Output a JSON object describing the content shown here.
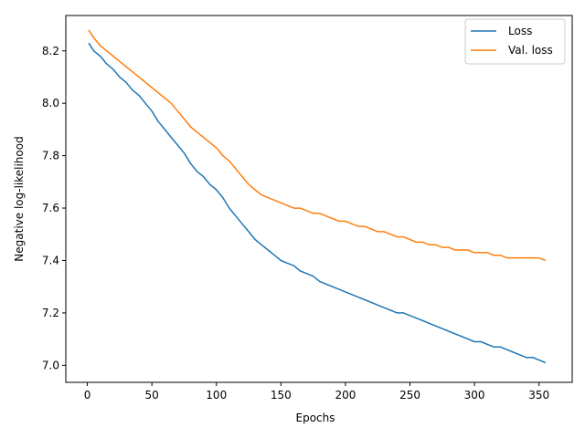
{
  "chart_data": {
    "type": "line",
    "xlabel": "Epochs",
    "ylabel": "Negative log-likelihood",
    "xlim": [
      -16.7,
      375.7
    ],
    "ylim": [
      6.935,
      8.335
    ],
    "xticks": [
      0,
      50,
      100,
      150,
      200,
      250,
      300,
      350
    ],
    "yticks": [
      7.0,
      7.2,
      7.4,
      7.6,
      7.8,
      8.0,
      8.2
    ],
    "yticklabels": [
      "7.0",
      "7.2",
      "7.4",
      "7.6",
      "7.8",
      "8.0",
      "8.2"
    ],
    "grid": false,
    "legend_position": "top-right",
    "series": [
      {
        "name": "Loss",
        "color": "#1f77b4",
        "x": [
          1,
          5,
          10,
          15,
          20,
          25,
          30,
          35,
          40,
          45,
          50,
          55,
          60,
          65,
          70,
          75,
          80,
          85,
          90,
          95,
          100,
          105,
          110,
          115,
          120,
          125,
          130,
          135,
          140,
          145,
          150,
          155,
          160,
          165,
          170,
          175,
          180,
          185,
          190,
          195,
          200,
          205,
          210,
          215,
          220,
          225,
          230,
          235,
          240,
          245,
          250,
          255,
          260,
          265,
          270,
          275,
          280,
          285,
          290,
          295,
          300,
          305,
          310,
          315,
          320,
          325,
          330,
          335,
          340,
          345,
          350,
          355
        ],
        "y": [
          8.23,
          8.2,
          8.18,
          8.15,
          8.13,
          8.1,
          8.08,
          8.05,
          8.03,
          8.0,
          7.97,
          7.93,
          7.9,
          7.87,
          7.84,
          7.81,
          7.77,
          7.74,
          7.72,
          7.69,
          7.67,
          7.64,
          7.6,
          7.57,
          7.54,
          7.51,
          7.48,
          7.46,
          7.44,
          7.42,
          7.4,
          7.39,
          7.38,
          7.36,
          7.35,
          7.34,
          7.32,
          7.31,
          7.3,
          7.29,
          7.28,
          7.27,
          7.26,
          7.25,
          7.24,
          7.23,
          7.22,
          7.21,
          7.2,
          7.2,
          7.19,
          7.18,
          7.17,
          7.16,
          7.15,
          7.14,
          7.13,
          7.12,
          7.11,
          7.1,
          7.09,
          7.09,
          7.08,
          7.07,
          7.07,
          7.06,
          7.05,
          7.04,
          7.03,
          7.03,
          7.02,
          7.01
        ]
      },
      {
        "name": "Val. loss",
        "color": "#ff7f0e",
        "x": [
          1,
          5,
          10,
          15,
          20,
          25,
          30,
          35,
          40,
          45,
          50,
          55,
          60,
          65,
          70,
          75,
          80,
          85,
          90,
          95,
          100,
          105,
          110,
          115,
          120,
          125,
          130,
          135,
          140,
          145,
          150,
          155,
          160,
          165,
          170,
          175,
          180,
          185,
          190,
          195,
          200,
          205,
          210,
          215,
          220,
          225,
          230,
          235,
          240,
          245,
          250,
          255,
          260,
          265,
          270,
          275,
          280,
          285,
          290,
          295,
          300,
          305,
          310,
          315,
          320,
          325,
          330,
          335,
          340,
          345,
          350,
          355
        ],
        "y": [
          8.28,
          8.25,
          8.22,
          8.2,
          8.18,
          8.16,
          8.14,
          8.12,
          8.1,
          8.08,
          8.06,
          8.04,
          8.02,
          8.0,
          7.97,
          7.94,
          7.91,
          7.89,
          7.87,
          7.85,
          7.83,
          7.8,
          7.78,
          7.75,
          7.72,
          7.69,
          7.67,
          7.65,
          7.64,
          7.63,
          7.62,
          7.61,
          7.6,
          7.6,
          7.59,
          7.58,
          7.58,
          7.57,
          7.56,
          7.55,
          7.55,
          7.54,
          7.53,
          7.53,
          7.52,
          7.51,
          7.51,
          7.5,
          7.49,
          7.49,
          7.48,
          7.47,
          7.47,
          7.46,
          7.46,
          7.45,
          7.45,
          7.44,
          7.44,
          7.44,
          7.43,
          7.43,
          7.43,
          7.42,
          7.42,
          7.41,
          7.41,
          7.41,
          7.41,
          7.41,
          7.41,
          7.4
        ]
      }
    ]
  }
}
